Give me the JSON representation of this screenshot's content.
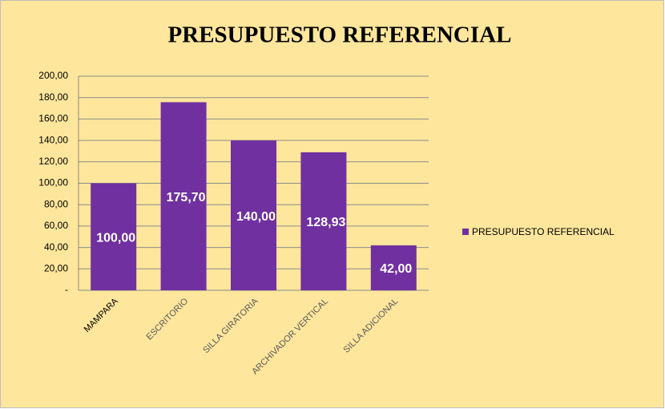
{
  "chart_data": {
    "type": "bar",
    "title": "PRESUPUESTO REFERENCIAL",
    "categories": [
      "MAMPARA",
      "ESCRITORIO",
      "SILLA GIRATORIA",
      "ARCHIVADOR VERTICAL",
      "SILLA ADICIONAL"
    ],
    "series": [
      {
        "name": "PRESUPUESTO REFERENCIAL",
        "color": "#7030a0",
        "values": [
          100,
          175.7,
          140,
          128.93,
          42
        ],
        "value_labels": [
          "100,00",
          "175,70",
          "140,00",
          "128,93",
          "42,00"
        ]
      }
    ],
    "ylim": [
      0,
      200
    ],
    "yticks": [
      {
        "value": 0,
        "label": "-"
      },
      {
        "value": 20,
        "label": "20,00"
      },
      {
        "value": 40,
        "label": "40,00"
      },
      {
        "value": 60,
        "label": "60,00"
      },
      {
        "value": 80,
        "label": "80,00"
      },
      {
        "value": 100,
        "label": "100,00"
      },
      {
        "value": 120,
        "label": "120,00"
      },
      {
        "value": 140,
        "label": "140,00"
      },
      {
        "value": 160,
        "label": "160,00"
      },
      {
        "value": 180,
        "label": "180,00"
      },
      {
        "value": 200,
        "label": "200,00"
      }
    ],
    "grid": true,
    "legend": "right"
  }
}
